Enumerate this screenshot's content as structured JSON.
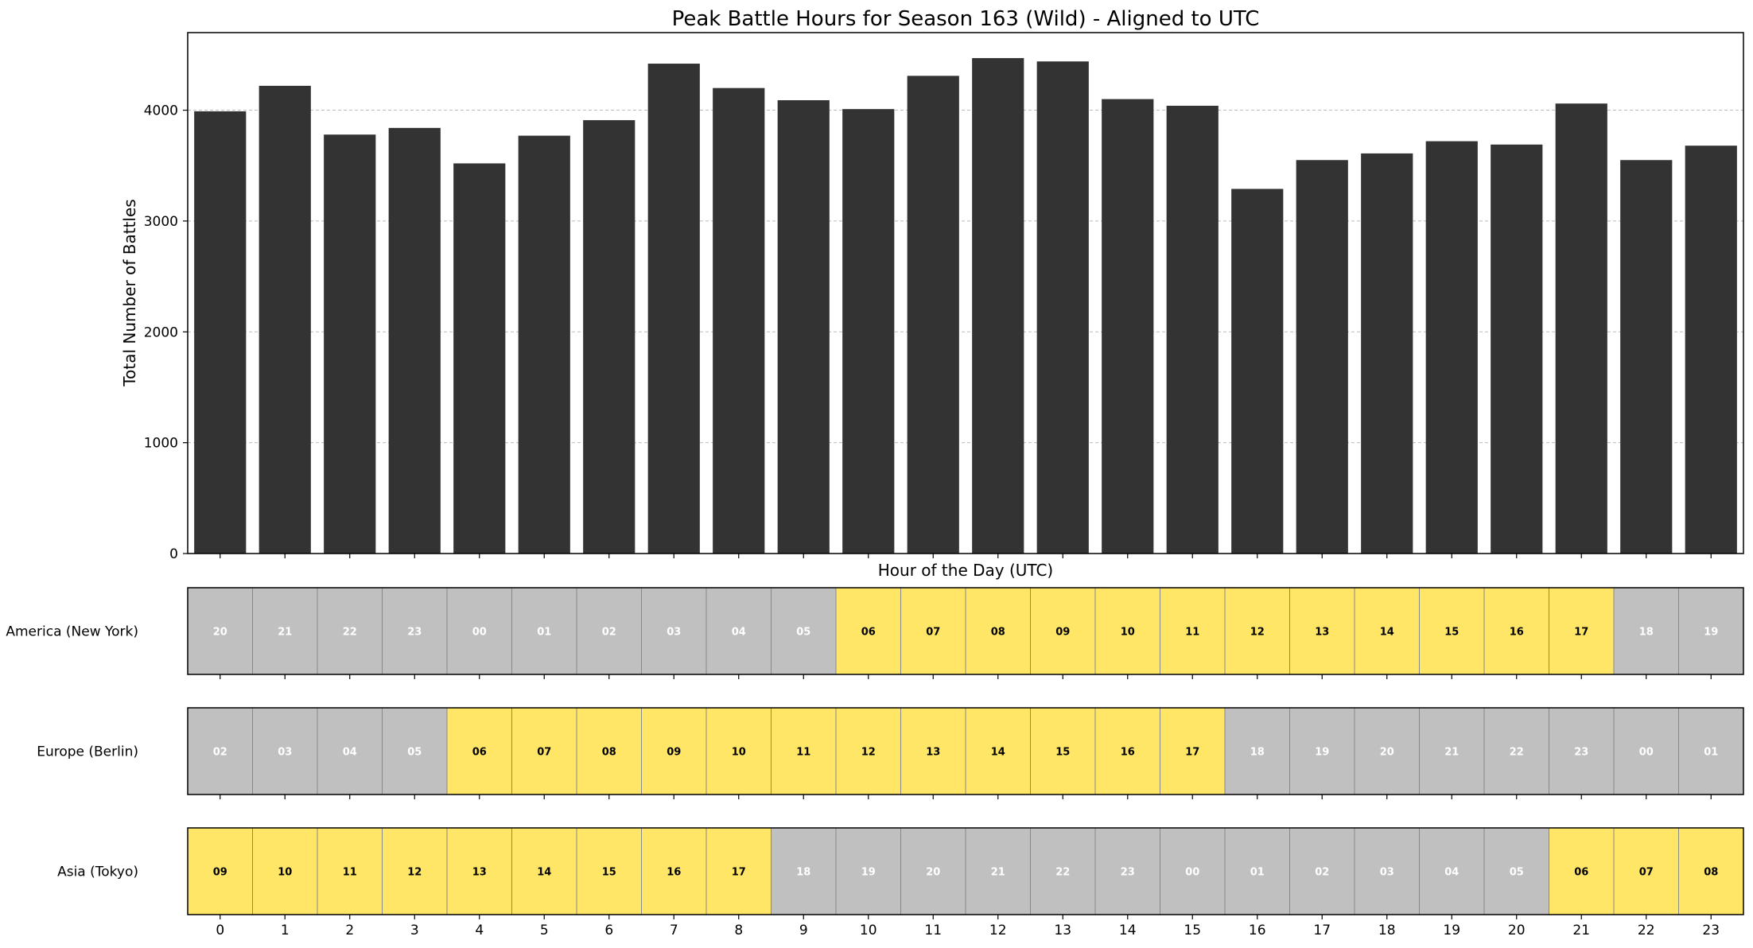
{
  "chart_data": {
    "type": "bar",
    "title": "Peak Battle Hours for Season 163 (Wild) - Aligned to UTC",
    "xlabel": "Hour of the Day (UTC)",
    "ylabel": "Total Number of Battles",
    "categories": [
      "0",
      "1",
      "2",
      "3",
      "4",
      "5",
      "6",
      "7",
      "8",
      "9",
      "10",
      "11",
      "12",
      "13",
      "14",
      "15",
      "16",
      "17",
      "18",
      "19",
      "20",
      "21",
      "22",
      "23"
    ],
    "values": [
      3990,
      4220,
      3780,
      3840,
      3520,
      3770,
      3910,
      4420,
      4200,
      4090,
      4010,
      4310,
      4470,
      4440,
      4100,
      4040,
      3290,
      3550,
      3610,
      3720,
      3690,
      4060,
      3550,
      3680
    ],
    "yticks": [
      0,
      1000,
      2000,
      3000,
      4000
    ],
    "ylim": [
      0,
      4700
    ],
    "grid": "y",
    "bar_color": "#333333",
    "timezones": [
      {
        "name": "America (New York)",
        "hours": [
          "20",
          "21",
          "22",
          "23",
          "00",
          "01",
          "02",
          "03",
          "04",
          "05",
          "06",
          "07",
          "08",
          "09",
          "10",
          "11",
          "12",
          "13",
          "14",
          "15",
          "16",
          "17",
          "18",
          "19"
        ],
        "peak": [
          false,
          false,
          false,
          false,
          false,
          false,
          false,
          false,
          false,
          false,
          true,
          true,
          true,
          true,
          true,
          true,
          true,
          true,
          true,
          true,
          true,
          true,
          false,
          false
        ]
      },
      {
        "name": "Europe (Berlin)",
        "hours": [
          "02",
          "03",
          "04",
          "05",
          "06",
          "07",
          "08",
          "09",
          "10",
          "11",
          "12",
          "13",
          "14",
          "15",
          "16",
          "17",
          "18",
          "19",
          "20",
          "21",
          "22",
          "23",
          "00",
          "01"
        ],
        "peak": [
          false,
          false,
          false,
          false,
          true,
          true,
          true,
          true,
          true,
          true,
          true,
          true,
          true,
          true,
          true,
          true,
          false,
          false,
          false,
          false,
          false,
          false,
          false,
          false
        ]
      },
      {
        "name": "Asia (Tokyo)",
        "hours": [
          "09",
          "10",
          "11",
          "12",
          "13",
          "14",
          "15",
          "16",
          "17",
          "18",
          "19",
          "20",
          "21",
          "22",
          "23",
          "00",
          "01",
          "02",
          "03",
          "04",
          "05",
          "06",
          "07",
          "08"
        ],
        "peak": [
          true,
          true,
          true,
          true,
          true,
          true,
          true,
          true,
          true,
          false,
          false,
          false,
          false,
          false,
          false,
          false,
          false,
          false,
          false,
          false,
          false,
          true,
          true,
          true
        ]
      }
    ],
    "colors": {
      "peak": "#FFE666",
      "offpeak": "#C0C0C0",
      "peak_text": "#000000",
      "offpeak_text": "#ffffff"
    }
  }
}
